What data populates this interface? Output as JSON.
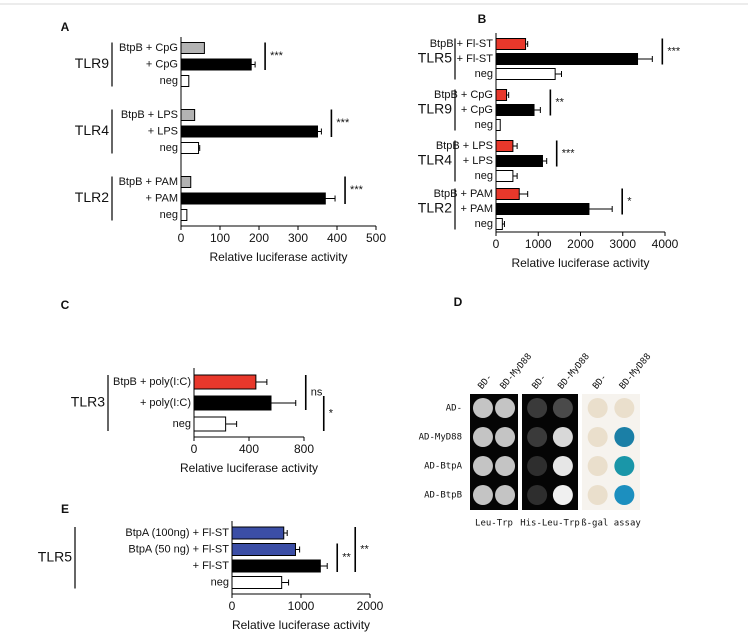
{
  "chart_data": [
    {
      "panel": "A",
      "type": "bar",
      "orientation": "horizontal",
      "xlabel": "Relative luciferase activity",
      "xlim": [
        0,
        500
      ],
      "xticks": [
        0,
        100,
        200,
        300,
        400,
        500
      ],
      "groups": [
        {
          "name": "TLR9",
          "categories": [
            "BtpB + CpG",
            "+ CpG",
            "neg"
          ],
          "values": [
            60,
            180,
            20
          ],
          "errors": [
            null,
            10,
            null
          ],
          "colors": [
            "#b3b3b3",
            "#000000",
            "#ffffff"
          ],
          "annotations": [
            {
              "label": "***",
              "span": [
                0,
                1
              ]
            }
          ]
        },
        {
          "name": "TLR4",
          "categories": [
            "BtpB + LPS",
            "+ LPS",
            "neg"
          ],
          "values": [
            35,
            350,
            45
          ],
          "errors": [
            null,
            10,
            3
          ],
          "colors": [
            "#b3b3b3",
            "#000000",
            "#ffffff"
          ],
          "annotations": [
            {
              "label": "***",
              "span": [
                0,
                1
              ]
            }
          ]
        },
        {
          "name": "TLR2",
          "categories": [
            "BtpB + PAM",
            "+ PAM",
            "neg"
          ],
          "values": [
            25,
            370,
            15
          ],
          "errors": [
            null,
            25,
            null
          ],
          "colors": [
            "#b3b3b3",
            "#000000",
            "#ffffff"
          ],
          "annotations": [
            {
              "label": "***",
              "span": [
                0,
                1
              ]
            }
          ]
        }
      ]
    },
    {
      "panel": "B",
      "type": "bar",
      "orientation": "horizontal",
      "xlabel": "Relative luciferase activity",
      "xlim": [
        0,
        4000
      ],
      "xticks": [
        0,
        1000,
        2000,
        3000,
        4000
      ],
      "groups": [
        {
          "name": "TLR5",
          "categories": [
            "BtpB + Fl-ST",
            "+ Fl-ST",
            "neg"
          ],
          "values": [
            700,
            3350,
            1400
          ],
          "errors": [
            50,
            350,
            150
          ],
          "colors": [
            "#e8382b",
            "#000000",
            "#ffffff"
          ],
          "annotations": [
            {
              "label": "***",
              "span": [
                0,
                1
              ]
            }
          ]
        },
        {
          "name": "TLR9",
          "categories": [
            "BtpB + CpG",
            "+ CpG",
            "neg"
          ],
          "values": [
            250,
            900,
            100
          ],
          "errors": [
            50,
            150,
            null
          ],
          "colors": [
            "#e8382b",
            "#000000",
            "#ffffff"
          ],
          "annotations": [
            {
              "label": "**",
              "span": [
                0,
                1
              ]
            }
          ]
        },
        {
          "name": "TLR4",
          "categories": [
            "BtpB + LPS",
            "+ LPS",
            "neg"
          ],
          "values": [
            400,
            1100,
            400
          ],
          "errors": [
            100,
            100,
            100
          ],
          "colors": [
            "#e8382b",
            "#000000",
            "#ffffff"
          ],
          "annotations": [
            {
              "label": "***",
              "span": [
                0,
                1
              ]
            }
          ]
        },
        {
          "name": "TLR2",
          "categories": [
            "BtpB + PAM",
            "+ PAM",
            "neg"
          ],
          "values": [
            550,
            2200,
            150
          ],
          "errors": [
            200,
            550,
            50
          ],
          "colors": [
            "#e8382b",
            "#000000",
            "#ffffff"
          ],
          "annotations": [
            {
              "label": "*",
              "span": [
                0,
                1
              ]
            }
          ]
        }
      ]
    },
    {
      "panel": "C",
      "type": "bar",
      "orientation": "horizontal",
      "xlabel": "Relative luciferase activity",
      "xlim": [
        0,
        800
      ],
      "xticks": [
        0,
        400,
        800
      ],
      "groups": [
        {
          "name": "TLR3",
          "categories": [
            "BtpB + poly(I:C)",
            "+ poly(I:C)",
            "neg"
          ],
          "values": [
            450,
            560,
            230
          ],
          "errors": [
            80,
            180,
            80
          ],
          "colors": [
            "#e8382b",
            "#000000",
            "#ffffff"
          ],
          "annotations": [
            {
              "label": "ns",
              "span": [
                0,
                1
              ]
            },
            {
              "label": "*",
              "span": [
                1,
                2
              ]
            }
          ]
        }
      ]
    },
    {
      "panel": "E",
      "type": "bar",
      "orientation": "horizontal",
      "xlabel": "Relative luciferase activity",
      "xlim": [
        0,
        2000
      ],
      "xticks": [
        0,
        1000,
        2000
      ],
      "groups": [
        {
          "name": "TLR5",
          "categories": [
            "BtpA (100ng) + Fl-ST",
            "BtpA (50 ng) + Fl-ST",
            "+ Fl-ST",
            "neg"
          ],
          "values": [
            750,
            920,
            1280,
            720
          ],
          "errors": [
            50,
            60,
            100,
            100
          ],
          "colors": [
            "#3b4ea6",
            "#3b4ea6",
            "#000000",
            "#ffffff"
          ],
          "annotations": [
            {
              "label": "**",
              "span": [
                1,
                2
              ]
            },
            {
              "label": "**",
              "span": [
                0,
                2
              ]
            }
          ]
        }
      ]
    }
  ],
  "panel_d": {
    "label": "D",
    "rows": [
      "AD-",
      "AD-MyD88",
      "AD-BtpA",
      "AD-BtpB"
    ],
    "panels": [
      {
        "caption": "Leu-Trp",
        "columns": [
          "BD-",
          "BD-MyD88"
        ]
      },
      {
        "caption": "His-Leu-Trp",
        "columns": [
          "BD-",
          "BD-MyD88"
        ]
      },
      {
        "caption": "ß-gal assay",
        "columns": [
          "BD-",
          "BD-MyD88"
        ]
      }
    ]
  }
}
